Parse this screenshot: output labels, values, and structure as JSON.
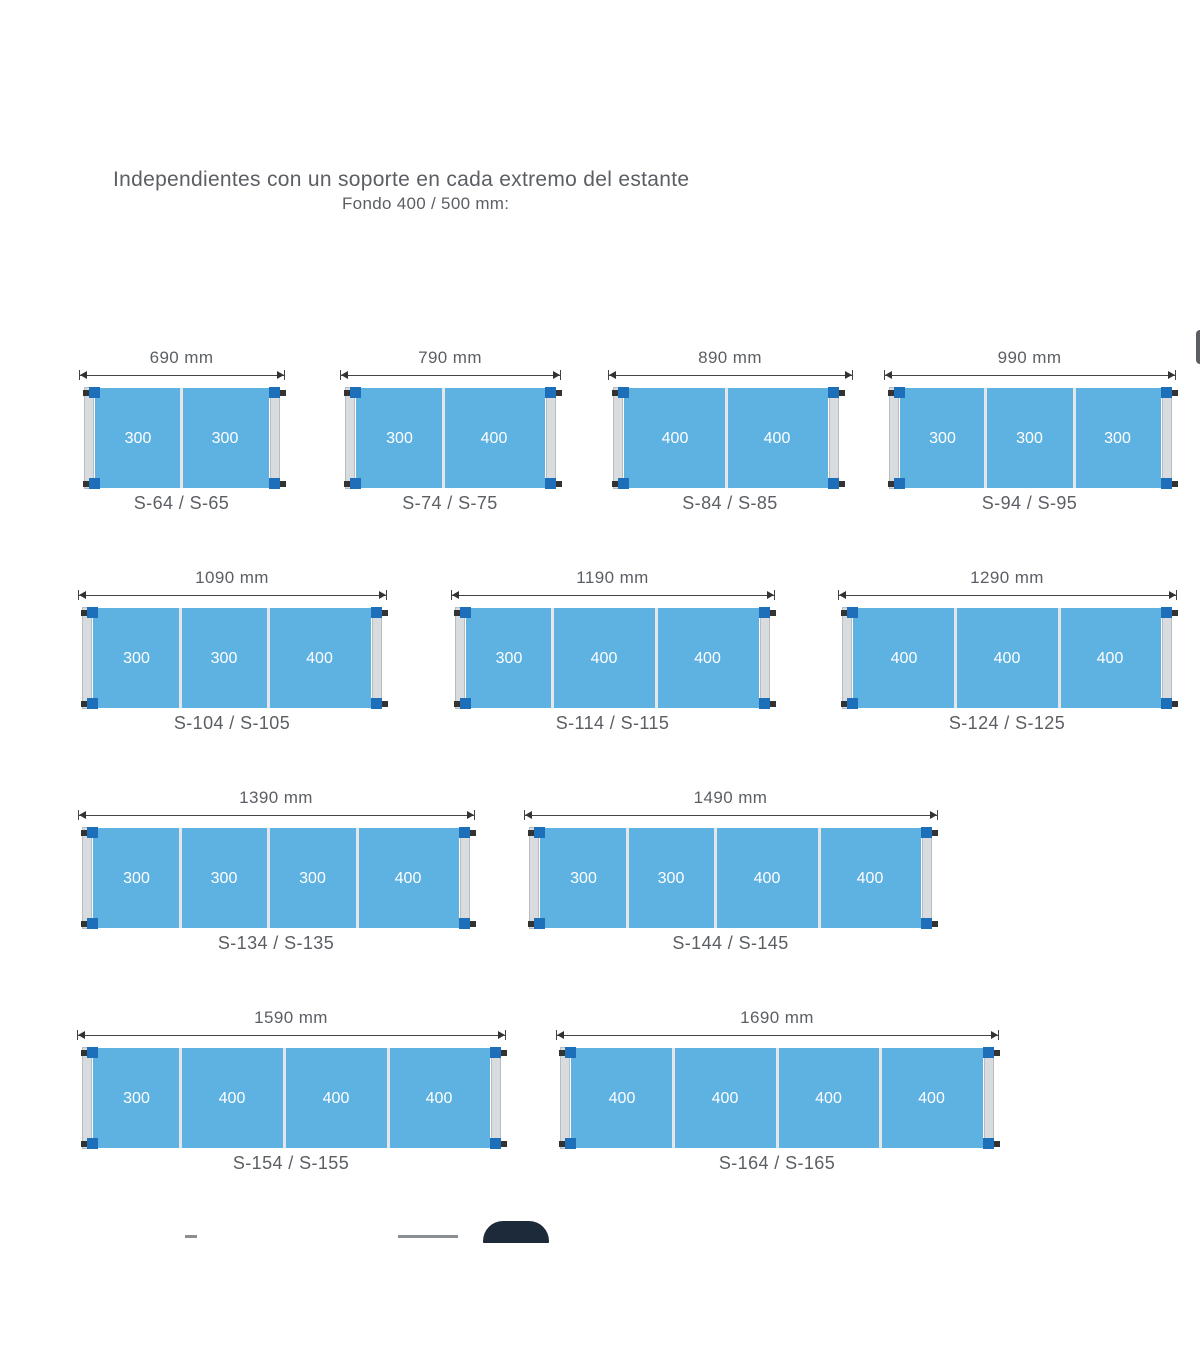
{
  "header": {
    "title": "Independientes con un soporte en cada extremo del estante",
    "subtitle": "Fondo 400 / 500 mm:"
  },
  "colors": {
    "shelf": "#5eb2e2",
    "bracket": "#1c6fb8",
    "post": "#d9dcdf",
    "text": "#5b5f64"
  },
  "units": [
    {
      "dimension": "690 mm",
      "code": "S-64 / S-65",
      "segments": [
        "300",
        "300"
      ]
    },
    {
      "dimension": "790 mm",
      "code": "S-74 / S-75",
      "segments": [
        "300",
        "400"
      ]
    },
    {
      "dimension": "890 mm",
      "code": "S-84 / S-85",
      "segments": [
        "400",
        "400"
      ]
    },
    {
      "dimension": "990 mm",
      "code": "S-94 / S-95",
      "segments": [
        "300",
        "300",
        "300"
      ]
    },
    {
      "dimension": "1090 mm",
      "code": "S-104 / S-105",
      "segments": [
        "300",
        "300",
        "400"
      ]
    },
    {
      "dimension": "1190 mm",
      "code": "S-114 / S-115",
      "segments": [
        "300",
        "400",
        "400"
      ]
    },
    {
      "dimension": "1290 mm",
      "code": "S-124 / S-125",
      "segments": [
        "400",
        "400",
        "400"
      ]
    },
    {
      "dimension": "1390 mm",
      "code": "S-134 / S-135",
      "segments": [
        "300",
        "300",
        "300",
        "400"
      ]
    },
    {
      "dimension": "1490 mm",
      "code": "S-144 / S-145",
      "segments": [
        "300",
        "300",
        "400",
        "400"
      ]
    },
    {
      "dimension": "1590 mm",
      "code": "S-154 / S-155",
      "segments": [
        "300",
        "400",
        "400",
        "400"
      ]
    },
    {
      "dimension": "1690 mm",
      "code": "S-164 / S-165",
      "segments": [
        "400",
        "400",
        "400",
        "400"
      ]
    }
  ]
}
